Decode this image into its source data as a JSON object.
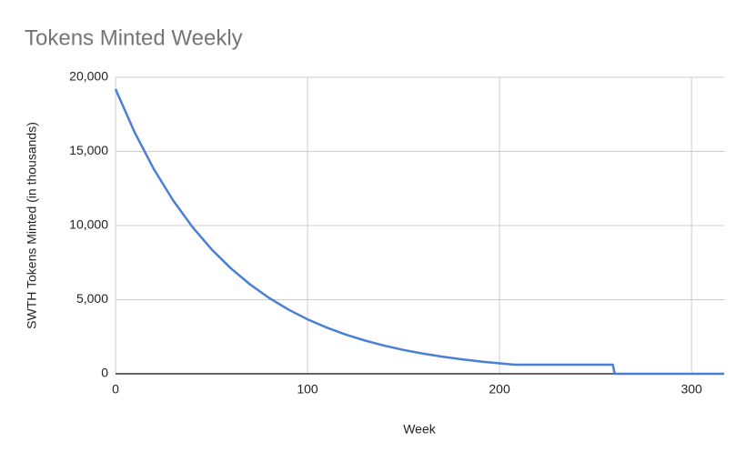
{
  "chart_data": {
    "type": "line",
    "title": "Tokens Minted Weekly",
    "x_label": "Week",
    "y_label": "SWTH Tokens Minted (in thousands)",
    "x": [
      0,
      10,
      20,
      30,
      40,
      50,
      60,
      70,
      80,
      90,
      100,
      110,
      120,
      130,
      140,
      150,
      160,
      170,
      180,
      190,
      200,
      208,
      259,
      260,
      317
    ],
    "series": [
      {
        "name": "SWTH Tokens Minted",
        "color": "#4a7fd6",
        "values": [
          19200,
          16274,
          13795,
          11693,
          9911,
          8400,
          7121,
          6035,
          5115,
          4336,
          3675,
          3116,
          2640,
          2239,
          1897,
          1607,
          1363,
          1156,
          979,
          829,
          703,
          615,
          615,
          0,
          0
        ]
      }
    ],
    "xlim": [
      0,
      317
    ],
    "xticks": [
      0,
      100,
      200,
      300
    ],
    "ylim": [
      0,
      20000
    ],
    "yticks": [
      0,
      {
        "value": 5000,
        "label": "5,000"
      },
      {
        "value": 10000,
        "label": "10,000"
      },
      {
        "value": 15000,
        "label": "15,000"
      },
      {
        "value": 20000,
        "label": "20,000"
      }
    ],
    "grid": true
  }
}
